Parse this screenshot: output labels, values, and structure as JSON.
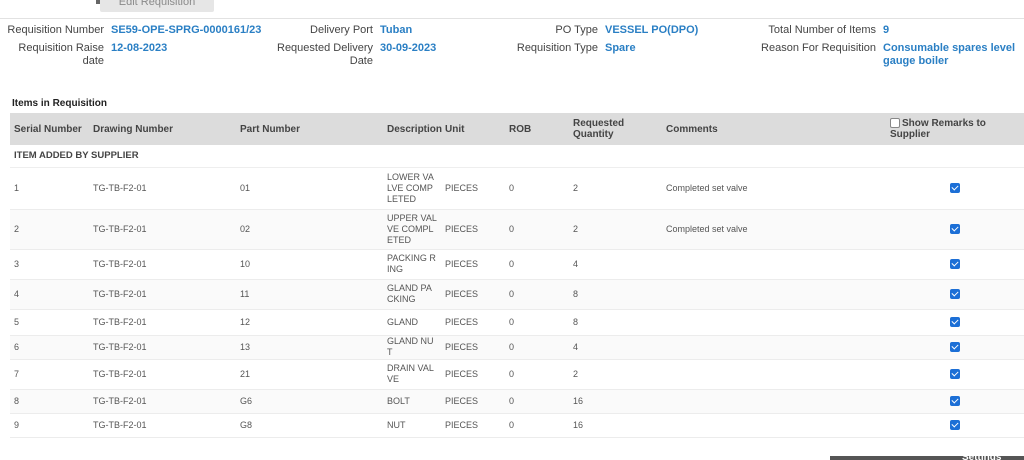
{
  "header": {
    "edit_button_label": "Edit Requisition"
  },
  "info": {
    "requisition_number_label": "Requisition Number",
    "requisition_number": "SE59-OPE-SPRG-0000161/23",
    "delivery_port_label": "Delivery Port",
    "delivery_port": "Tuban",
    "po_type_label": "PO Type",
    "po_type": "VESSEL PO(DPO)",
    "total_items_label": "Total Number of Items",
    "total_items": "9",
    "raise_date_label_1": "Requisition Raise",
    "raise_date_label_2": "date",
    "raise_date": "12-08-2023",
    "requested_delivery_label_1": "Requested Delivery",
    "requested_delivery_label_2": "Date",
    "requested_delivery": "30-09-2023",
    "requisition_type_label": "Requisition Type",
    "requisition_type": "Spare",
    "reason_label": "Reason For Requisition",
    "reason_line_1": "Consumable spares level",
    "reason_line_2": "gauge boiler"
  },
  "items_section": {
    "title": "Items in Requisition",
    "columns": {
      "serial": "Serial Number",
      "drawing": "Drawing Number",
      "part": "Part Number",
      "description": "Description",
      "unit": "Unit",
      "rob": "ROB",
      "requested_1": "Requested",
      "requested_2": "Quantity",
      "comments": "Comments",
      "show_remarks": "Show Remarks to Supplier"
    },
    "group_label": "ITEM ADDED BY SUPPLIER",
    "rows": [
      {
        "serial": "1",
        "drawing": "TG-TB-F2-01",
        "part": "01",
        "description": "LOWER VALVE COMPLETED",
        "unit": "PIECES",
        "rob": "0",
        "qty": "2",
        "comments": "Completed set valve"
      },
      {
        "serial": "2",
        "drawing": "TG-TB-F2-01",
        "part": "02",
        "description": "UPPER VALVE COMPLETED",
        "unit": "PIECES",
        "rob": "0",
        "qty": "2",
        "comments": "Completed set valve"
      },
      {
        "serial": "3",
        "drawing": "TG-TB-F2-01",
        "part": "10",
        "description": "PACKING RING",
        "unit": "PIECES",
        "rob": "0",
        "qty": "4",
        "comments": ""
      },
      {
        "serial": "4",
        "drawing": "TG-TB-F2-01",
        "part": "11",
        "description": "GLAND PACKING",
        "unit": "PIECES",
        "rob": "0",
        "qty": "8",
        "comments": ""
      },
      {
        "serial": "5",
        "drawing": "TG-TB-F2-01",
        "part": "12",
        "description": "GLAND",
        "unit": "PIECES",
        "rob": "0",
        "qty": "8",
        "comments": ""
      },
      {
        "serial": "6",
        "drawing": "TG-TB-F2-01",
        "part": "13",
        "description": "GLAND NUT",
        "unit": "PIECES",
        "rob": "0",
        "qty": "4",
        "comments": ""
      },
      {
        "serial": "7",
        "drawing": "TG-TB-F2-01",
        "part": "21",
        "description": "DRAIN VALVE",
        "unit": "PIECES",
        "rob": "0",
        "qty": "2",
        "comments": ""
      },
      {
        "serial": "8",
        "drawing": "TG-TB-F2-01",
        "part": "G6",
        "description": "BOLT",
        "unit": "PIECES",
        "rob": "0",
        "qty": "16",
        "comments": ""
      },
      {
        "serial": "9",
        "drawing": "TG-TB-F2-01",
        "part": "G8",
        "description": "NUT",
        "unit": "PIECES",
        "rob": "0",
        "qty": "16",
        "comments": ""
      }
    ]
  },
  "footer": {
    "settings_label": "Settings"
  },
  "colors": {
    "link_blue": "#2a7fc4",
    "checkbox_blue": "#1c6fd6",
    "header_gray": "#dcdcdc"
  }
}
